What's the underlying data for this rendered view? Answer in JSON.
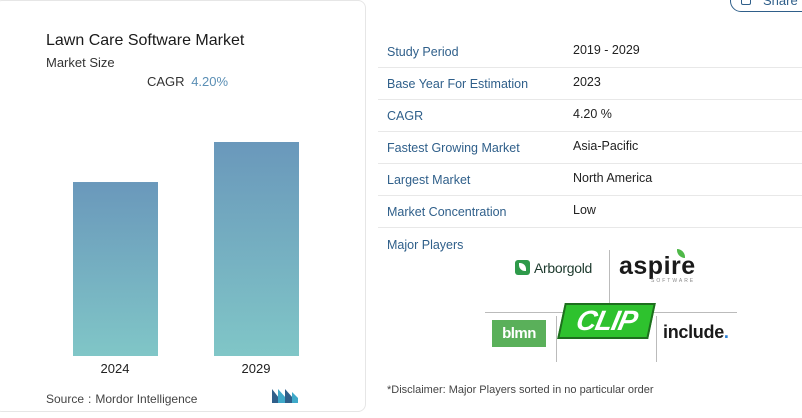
{
  "share": {
    "label": "Share"
  },
  "chart": {
    "title": "Lawn Care Software Market",
    "subtitle": "Market Size",
    "cagr_label": "CAGR",
    "cagr_value": "4.20%",
    "source_label": "Source",
    "source_value": "Mordor Intelligence"
  },
  "chart_data": {
    "type": "bar",
    "categories": [
      "2024",
      "2029"
    ],
    "values": [
      1,
      1.23
    ],
    "title": "Lawn Care Software Market",
    "xlabel": "",
    "ylabel": "",
    "grid": false,
    "bar_color_top": "#6a98bb",
    "bar_color_bottom": "#80c6c7"
  },
  "table": {
    "rows": [
      {
        "key": "Study Period",
        "value": "2019 - 2029"
      },
      {
        "key": "Base Year For Estimation",
        "value": "2023"
      },
      {
        "key": "CAGR",
        "value": "4.20 %"
      },
      {
        "key": "Fastest Growing Market",
        "value": "Asia-Pacific"
      },
      {
        "key": "Largest Market",
        "value": "North America"
      },
      {
        "key": "Market Concentration",
        "value": "Low"
      }
    ]
  },
  "players": {
    "title": "Major Players",
    "logos": [
      {
        "name": "Arborgold",
        "icon": "leaf-icon"
      },
      {
        "name": "aspire",
        "sub": "SOFTWARE"
      },
      {
        "name": "blmn"
      },
      {
        "name": "CLIP"
      },
      {
        "name": "include"
      }
    ],
    "disclaimer": "*Disclaimer: Major Players sorted in no particular order"
  }
}
